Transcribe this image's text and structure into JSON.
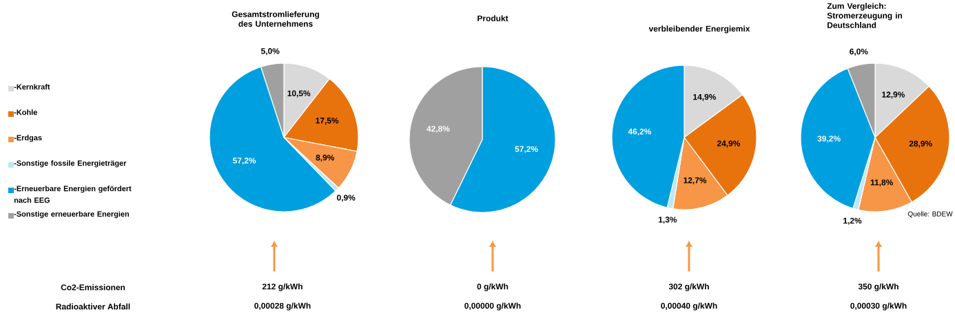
{
  "chart_data": [
    {
      "type": "pie",
      "title": "Gesamtstromlieferung des Unternehmens",
      "categories": [
        "-Kernkraft",
        "-Kohle",
        "-Erdgas",
        "-Sonstige fossile Energieträger",
        "-Erneuerbare Energien gefördert nach EEG",
        "-Sonstige erneuerbare Energien"
      ],
      "values": [
        10.5,
        17.5,
        8.9,
        0.9,
        57.2,
        5.0
      ],
      "colors": [
        "#d9d9d9",
        "#e8730c",
        "#f79646",
        "#bde7f5",
        "#009fdf",
        "#a0a0a0"
      ],
      "value_labels": [
        "10,5%",
        "17,5%",
        "8,9%",
        "0,9%",
        "57,2%",
        "5,0%"
      ],
      "legend": "left",
      "annotations": [
        "Co2-Emissionen",
        "Radioaktiver Abfall",
        "212 g/kWh",
        "0,00028 g/kWh"
      ]
    },
    {
      "type": "pie",
      "title": "Produkt",
      "categories": [
        null,
        null,
        null,
        null,
        null,
        null
      ],
      "values": [
        0,
        0,
        0,
        0,
        57.2,
        42.8
      ],
      "colors": [
        "#d9d9d9",
        "#e8730c",
        "#f79646",
        "#bde7f5",
        "#009fdf",
        "#a0a0a0"
      ],
      "value_labels": [
        null,
        null,
        null,
        null,
        "57,2%",
        "42,8%"
      ],
      "annotations": [
        "0 g/kWh",
        "0,00000 g/kWh"
      ]
    },
    {
      "type": "pie",
      "title": "verbleibender Energiemix",
      "categories": [
        null,
        null,
        null,
        null,
        null,
        null
      ],
      "values": [
        14.9,
        24.9,
        12.7,
        1.3,
        46.2,
        0
      ],
      "colors": [
        "#d9d9d9",
        "#e8730c",
        "#f79646",
        "#bde7f5",
        "#009fdf",
        "#a0a0a0"
      ],
      "value_labels": [
        "14,9%",
        "24,9%",
        "12,7%",
        "1,3%",
        "46,2%",
        null
      ],
      "annotations": [
        "302 g/kWh",
        "0,00040 g/kWh"
      ]
    },
    {
      "type": "pie",
      "title": "Zum Vergleich: Stromerzeugung in Deutschland",
      "categories": [
        null,
        null,
        null,
        null,
        null,
        null
      ],
      "values": [
        12.9,
        28.9,
        11.8,
        1.2,
        39.2,
        6.0
      ],
      "colors": [
        "#d9d9d9",
        "#e8730c",
        "#f79646",
        "#bde7f5",
        "#009fdf",
        "#a0a0a0"
      ],
      "value_labels": [
        "12,9%",
        "28,9%",
        "11,8%",
        "1,2%",
        "39,2%",
        "6,0%"
      ],
      "annotations": [
        "Quelle: BDEW",
        "350 g/kWh",
        "0,00030 g/kWh"
      ]
    }
  ]
}
